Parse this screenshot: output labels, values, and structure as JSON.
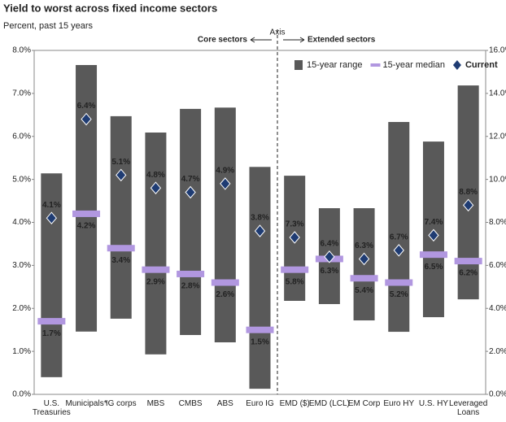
{
  "chart_data": {
    "type": "range-bar",
    "title": "Yield to worst across fixed income sectors",
    "subtitle": "Percent, past 15 years",
    "axis_note": "Axis",
    "ylim": [
      0,
      8
    ],
    "yticks": [
      {
        "value": 0,
        "label": "0.0%"
      },
      {
        "value": 1,
        "label": "1.0%"
      },
      {
        "value": 2,
        "label": "2.0%"
      },
      {
        "value": 3,
        "label": "3.0%"
      },
      {
        "value": 4,
        "label": "4.0%"
      },
      {
        "value": 5,
        "label": "5.0%"
      },
      {
        "value": 6,
        "label": "6.0%"
      },
      {
        "value": 7,
        "label": "7.0%"
      },
      {
        "value": 8,
        "label": "8.0%"
      }
    ],
    "y2lim": [
      0,
      16
    ],
    "y2ticks": [
      {
        "value": 0,
        "label": "0.0%"
      },
      {
        "value": 2,
        "label": "2.0%"
      },
      {
        "value": 4,
        "label": "4.0%"
      },
      {
        "value": 6,
        "label": "6.0%"
      },
      {
        "value": 8,
        "label": "8.0%"
      },
      {
        "value": 10,
        "label": "10.0%"
      },
      {
        "value": 12,
        "label": "12.0%"
      },
      {
        "value": 14,
        "label": "14.0%"
      },
      {
        "value": 16,
        "label": "16.0%"
      }
    ],
    "legend_position": "upper right",
    "legend": [
      {
        "key": "range",
        "name": "15-year range",
        "color": "#595959"
      },
      {
        "key": "median",
        "name": "15-year median",
        "color": "#b197e0"
      },
      {
        "key": "current",
        "name": "Current",
        "color": "#1f3c73"
      }
    ],
    "groups": [
      {
        "label": "Core sectors",
        "axis": "y",
        "categories": [
          "U.S. Treasuries",
          "Municipals*",
          "IG corps",
          "MBS",
          "CMBS",
          "ABS",
          "Euro IG"
        ],
        "low": [
          0.4,
          1.46,
          1.76,
          0.93,
          1.38,
          1.21,
          0.13
        ],
        "high": [
          5.14,
          7.66,
          6.47,
          6.09,
          6.64,
          6.67,
          5.29
        ],
        "median": [
          1.7,
          4.2,
          3.4,
          2.9,
          2.8,
          2.6,
          1.5
        ],
        "median_labels": [
          "1.7%",
          "4.2%",
          "3.4%",
          "2.9%",
          "2.8%",
          "2.6%",
          "1.5%"
        ],
        "current": [
          4.1,
          6.4,
          5.1,
          4.8,
          4.7,
          4.9,
          3.8
        ],
        "current_labels": [
          "4.1%",
          "6.4%",
          "5.1%",
          "4.8%",
          "4.7%",
          "4.9%",
          "3.8%"
        ]
      },
      {
        "label": "Extended sectors",
        "axis": "y2",
        "categories": [
          "EMD ($)",
          "EMD (LCL)",
          "EM Corp",
          "Euro HY",
          "U.S. HY",
          "Leveraged Loans"
        ],
        "low": [
          4.35,
          4.2,
          3.44,
          2.91,
          3.59,
          4.42
        ],
        "high": [
          10.17,
          8.66,
          8.66,
          12.67,
          11.76,
          14.37
        ],
        "median": [
          5.8,
          6.3,
          5.4,
          5.2,
          6.5,
          6.2
        ],
        "median_labels": [
          "5.8%",
          "6.3%",
          "5.4%",
          "5.2%",
          "6.5%",
          "6.2%"
        ],
        "current": [
          7.3,
          6.4,
          6.3,
          6.7,
          7.4,
          8.8
        ],
        "current_labels": [
          "7.3%",
          "6.4%",
          "6.3%",
          "6.7%",
          "7.4%",
          "8.8%"
        ]
      }
    ]
  }
}
